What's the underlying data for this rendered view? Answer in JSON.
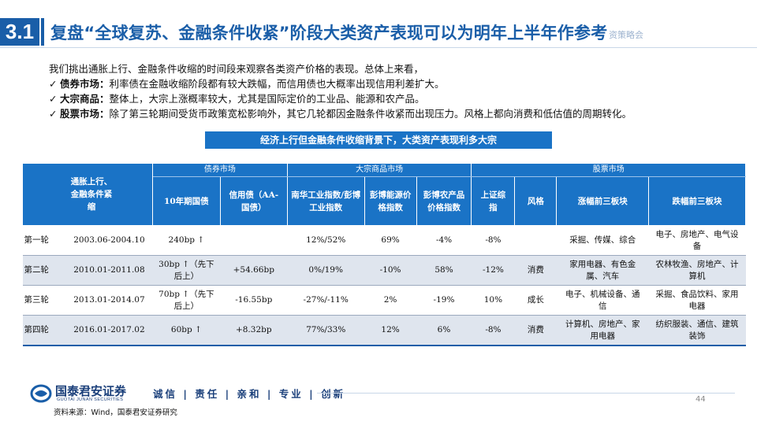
{
  "header": {
    "section_number": "3.1",
    "title": "复盘“全球复苏、金融条件收紧”阶段大类资产表现可以为明年上半年作参考",
    "ghost_text": "资策略会"
  },
  "intro": {
    "lead": "我们挑出通胀上行、金融条件收缩的时间段来观察各类资产价格的表现。总体上来看，",
    "points": [
      {
        "check": "✓",
        "label": "债券市场：",
        "text": "利率债在金融收缩阶段都有较大跌幅，而信用债也大概率出现信用利差扩大。"
      },
      {
        "check": "✓",
        "label": "大宗商品：",
        "text": "整体上，大宗上涨概率较大，尤其是国际定价的工业品、能源和农产品。"
      },
      {
        "check": "✓",
        "label": "股票市场：",
        "text": "除了第三轮期间受货币政策宽松影响外，其它几轮都因金融条件收紧而出现压力。风格上都向消费和低估值的周期转化。"
      }
    ]
  },
  "caption": "经济上行但金融条件收缩背景下，大类资产表现利多大宗",
  "table": {
    "corner": "通胀上行、金融条件紧缩",
    "groups": {
      "bond": "债券市场",
      "commodity": "大宗商品市场",
      "stock": "股票市场"
    },
    "headers": {
      "treasury": "10年期国债",
      "credit": "信用债（AA-国债）",
      "nanhua": "南华工业指数/彭博工业指数",
      "energy": "彭博能源价格指数",
      "agri": "彭博农产品价格指数",
      "sse": "上证综指",
      "style": "风格",
      "top3_up": "涨幅前三板块",
      "top3_down": "跌幅前三板块"
    },
    "rows": [
      {
        "round": "第一轮",
        "period": "2003.06-2004.10",
        "treasury": "240bp ↑",
        "credit": "",
        "nanhua": "12%/52%",
        "energy": "69%",
        "agri": "-4%",
        "sse": "-8%",
        "style": "",
        "up": "采掘、传媒、综合",
        "down": "电子、房地产、电气设备"
      },
      {
        "round": "第二轮",
        "period": "2010.01-2011.08",
        "treasury": "30bp ↑（先下后上）",
        "credit": "+54.66bp",
        "nanhua": "0%/19%",
        "energy": "-10%",
        "agri": "58%",
        "sse": "-12%",
        "style": "消费",
        "up": "家用电器、有色金属、汽车",
        "down": "农林牧渔、房地产、计算机"
      },
      {
        "round": "第三轮",
        "period": "2013.01-2014.07",
        "treasury": "70bp ↑（先下后上）",
        "credit": "-16.55bp",
        "nanhua": "-27%/-11%",
        "energy": "2%",
        "agri": "-19%",
        "sse": "10%",
        "style": "成长",
        "up": "电子、机械设备、通信",
        "down": "采掘、食品饮料、家用电器"
      },
      {
        "round": "第四轮",
        "period": "2016.01-2017.02",
        "treasury": "60bp ↑",
        "credit": "+8.32bp",
        "nanhua": "77%/33%",
        "energy": "12%",
        "agri": "6%",
        "sse": "-8%",
        "style": "消费",
        "up": "计算机、房地产、家用电器",
        "down": "纺织服装、通信、建筑装饰"
      }
    ]
  },
  "footer": {
    "brand": "国泰君安证券",
    "brand_en": "GUOTAI JUNAN SECURITIES",
    "slogan": "诚信 | 责任 | 亲和 | 专业 | 创新",
    "page": "44",
    "source": "资料来源：Wind，国泰君安证券研究"
  },
  "colors": {
    "primary": "#1a5ea8",
    "header_fill": "#1a73c6",
    "stripe": "#dfe5ee"
  }
}
